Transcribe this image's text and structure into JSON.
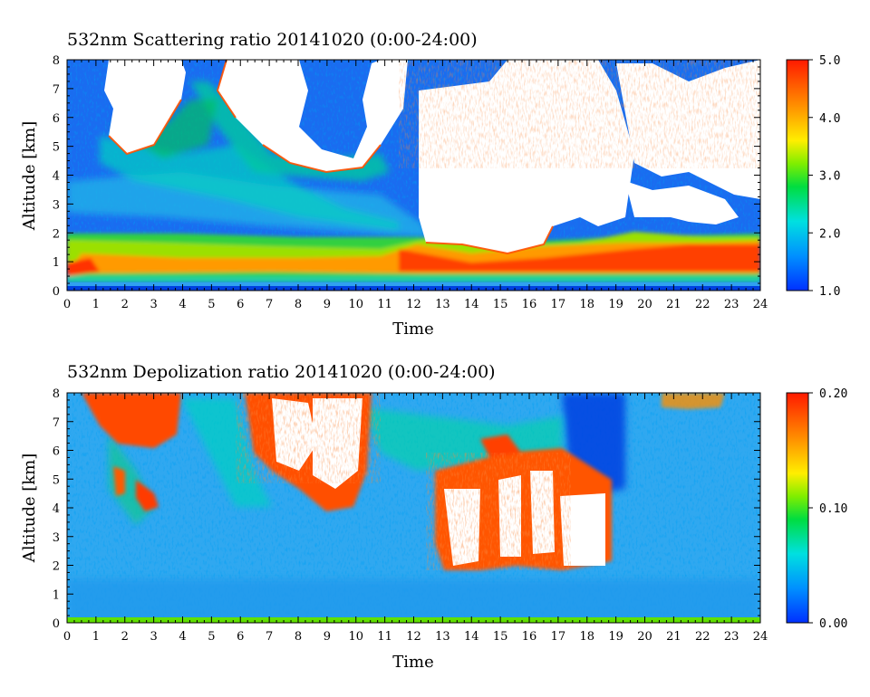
{
  "chart_data": [
    {
      "type": "heatmap",
      "title": "532nm Scattering ratio  20141020 (0:00-24:00)",
      "xlabel": "Time",
      "ylabel": "Altitude [km]",
      "xlim": [
        0,
        24
      ],
      "ylim": [
        0,
        8
      ],
      "x_ticks": [
        "0",
        "1",
        "2",
        "3",
        "4",
        "5",
        "6",
        "7",
        "8",
        "9",
        "10",
        "11",
        "12",
        "13",
        "14",
        "15",
        "16",
        "17",
        "18",
        "19",
        "20",
        "21",
        "22",
        "23",
        "24"
      ],
      "y_ticks": [
        "0",
        "1",
        "2",
        "3",
        "4",
        "5",
        "6",
        "7",
        "8"
      ],
      "colorbar": {
        "min": 1.0,
        "max": 5.0,
        "ticks": [
          "1.0",
          "2.0",
          "3.0",
          "4.0",
          "5.0"
        ]
      },
      "colors": {
        "low": "#0040ff",
        "mid": "#00dd00",
        "high": "#ff2000",
        "saturated": "#ffffff"
      }
    },
    {
      "type": "heatmap",
      "title": "532nm Depolization ratio  20141020 (0:00-24:00)",
      "xlabel": "Time",
      "ylabel": "Altitude [km]",
      "xlim": [
        0,
        24
      ],
      "ylim": [
        0,
        8
      ],
      "x_ticks": [
        "0",
        "1",
        "2",
        "3",
        "4",
        "5",
        "6",
        "7",
        "8",
        "9",
        "10",
        "11",
        "12",
        "13",
        "14",
        "15",
        "16",
        "17",
        "18",
        "19",
        "20",
        "21",
        "22",
        "23",
        "24"
      ],
      "y_ticks": [
        "0",
        "1",
        "2",
        "3",
        "4",
        "5",
        "6",
        "7",
        "8"
      ],
      "colorbar": {
        "min": 0.0,
        "max": 0.2,
        "ticks": [
          "0.00",
          "0.10",
          "0.20"
        ]
      },
      "colors": {
        "low": "#0040ff",
        "mid": "#00dd00",
        "high": "#ff2000",
        "saturated": "#ffffff"
      }
    }
  ]
}
